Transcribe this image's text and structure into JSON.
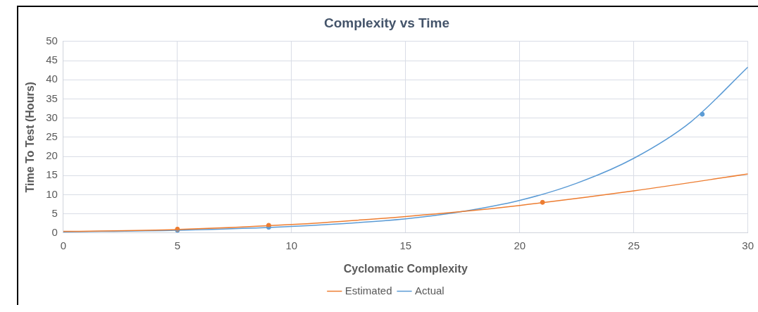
{
  "chart_data": {
    "type": "line",
    "title": "Complexity vs Time",
    "xlabel": "Cyclomatic Complexity",
    "ylabel": "Time To Test (Hours)",
    "xlim": [
      0,
      30
    ],
    "xticks": [
      0,
      5,
      10,
      15,
      20,
      25,
      30
    ],
    "ylim": [
      0,
      50
    ],
    "yticks": [
      0,
      5,
      10,
      15,
      20,
      25,
      30,
      35,
      40,
      45,
      50
    ],
    "grid": true,
    "legend": "bottom",
    "series": [
      {
        "name": "Estimated",
        "type": "line",
        "color": "#ed7d31",
        "marker": "none",
        "x": [
          0,
          5,
          10,
          15,
          17.5,
          20,
          25,
          30
        ],
        "values": [
          0.4,
          0.9,
          2.2,
          4.3,
          5.6,
          7.2,
          11.0,
          15.4
        ]
      },
      {
        "name": "Actual",
        "type": "line",
        "color": "#5b9bd5",
        "marker": "none",
        "x": [
          0,
          5,
          10,
          15,
          17.5,
          20,
          22.5,
          25,
          27.5,
          30
        ],
        "values": [
          0.3,
          0.7,
          1.7,
          3.7,
          5.6,
          8.5,
          13,
          19.5,
          29,
          43.3
        ]
      },
      {
        "type": "scatter",
        "color": "#ed7d31",
        "marker": "circle",
        "x": [
          5,
          9,
          21
        ],
        "values": [
          1,
          2,
          8
        ]
      },
      {
        "type": "scatter",
        "color": "#5b9bd5",
        "marker": "circle",
        "x": [
          5,
          9,
          28
        ],
        "values": [
          0.7,
          1.5,
          31
        ]
      }
    ]
  }
}
